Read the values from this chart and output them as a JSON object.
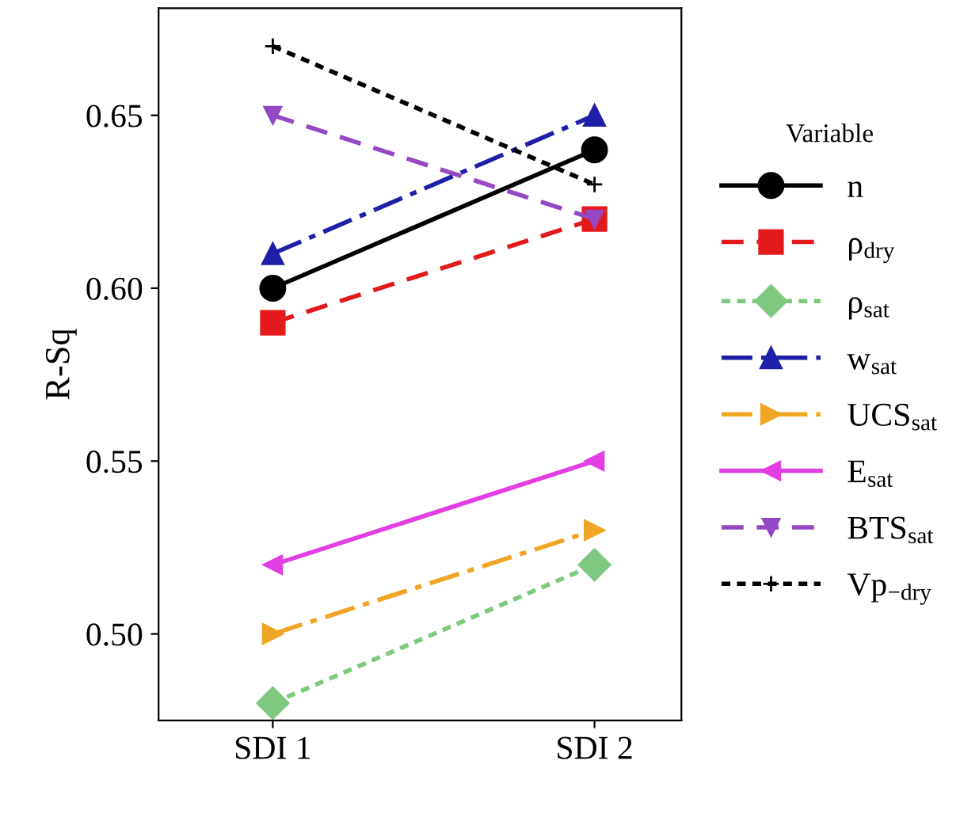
{
  "chart_data": {
    "type": "line",
    "ylabel": "R-Sq",
    "legend_title": "Variable",
    "categories": [
      "SDI 1",
      "SDI 2"
    ],
    "ylim": [
      0.475,
      0.681
    ],
    "yticks": [
      {
        "value": 0.5,
        "label": "0.50"
      },
      0.55,
      {
        "value": 0.6,
        "label": "0.60"
      },
      0.65
    ],
    "grid": false,
    "legend": "right",
    "series": [
      {
        "name": "n",
        "color": "#000000",
        "marker": "circle",
        "line_style": "solid",
        "values": [
          0.6,
          0.64
        ]
      },
      {
        "name": "ρ$_{dry}$",
        "color": "#e31a1c",
        "marker": "square",
        "line_style": "dashed",
        "values": [
          0.59,
          0.62
        ]
      },
      {
        "name": "ρ$_{sat}$",
        "color": "#7fc97f",
        "marker": "diamond",
        "line_style": "dotted",
        "values": [
          0.48,
          0.52
        ]
      },
      {
        "name": "w$_{sat}$",
        "color": "#1f1fa8",
        "marker": "triangle",
        "line_style": "dashdot",
        "values": [
          0.61,
          0.65
        ]
      },
      {
        "name": "UCS$_{sat}$",
        "color": "#f0a524",
        "marker": "triangle_right",
        "line_style": "dashdot",
        "values": [
          0.5,
          0.53
        ]
      },
      {
        "name": "E$_{sat}$",
        "color": "#e23ee2",
        "marker": "triangle_left",
        "line_style": "solid",
        "values": [
          0.52,
          0.55
        ]
      },
      {
        "name": "BTS$_{sat}$",
        "color": "#9448c4",
        "marker": "triangle_down",
        "line_style": "dashed",
        "values": [
          0.65,
          0.62
        ]
      },
      {
        "name": "Vp$_{−dry}$",
        "color": "#000000",
        "marker": "cross",
        "line_style": "dotted",
        "values": [
          0.67,
          0.63
        ]
      }
    ]
  }
}
